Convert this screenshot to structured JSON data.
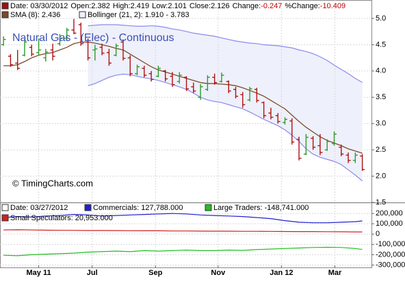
{
  "chart_data": [
    {
      "type": "ohlc",
      "title": "Natural Gas - (Elec) - Continuous",
      "header": [
        "Date: 03/30/2012",
        "Open:2.382",
        "High:2.419",
        "Low:2.101",
        "Close:2.126",
        "Change:",
        "-0.247",
        "%Change:",
        "-10.409"
      ],
      "header_color": "#a01010",
      "credit": "© TimingCharts.com",
      "x": [
        0,
        1,
        2,
        3,
        4,
        5,
        6,
        7,
        8,
        9,
        10,
        11,
        12,
        13,
        14,
        15,
        16,
        17,
        18,
        19,
        20,
        21,
        22,
        23,
        24,
        25,
        26,
        27,
        28,
        29,
        30,
        31,
        32,
        33,
        34,
        35,
        36,
        37,
        38,
        39,
        40,
        41,
        42,
        43,
        44,
        45,
        46,
        47,
        48,
        49,
        50,
        51
      ],
      "open": [
        4.5,
        4.28,
        4.15,
        4.3,
        4.45,
        4.35,
        4.25,
        4.4,
        4.52,
        4.62,
        4.78,
        4.88,
        4.55,
        4.4,
        4.45,
        4.35,
        4.3,
        4.55,
        4.25,
        3.95,
        4.05,
        3.95,
        3.9,
        4.0,
        3.9,
        3.8,
        3.88,
        3.7,
        3.5,
        3.65,
        3.88,
        3.8,
        3.8,
        3.65,
        3.55,
        3.45,
        3.65,
        3.4,
        3.2,
        3.15,
        3.02,
        3.05,
        2.7,
        2.42,
        2.72,
        2.58,
        2.5,
        2.62,
        2.55,
        2.4,
        2.3,
        2.382
      ],
      "high": [
        4.66,
        4.32,
        4.4,
        4.6,
        4.5,
        4.62,
        4.42,
        4.52,
        4.7,
        4.82,
        4.99,
        4.92,
        4.62,
        4.5,
        4.52,
        4.42,
        4.52,
        4.6,
        4.3,
        4.12,
        4.1,
        4.0,
        4.1,
        4.02,
        3.98,
        3.98,
        3.9,
        3.78,
        3.75,
        3.92,
        3.95,
        3.97,
        3.82,
        3.7,
        3.6,
        3.7,
        3.68,
        3.42,
        3.3,
        3.2,
        3.12,
        3.1,
        2.75,
        2.8,
        2.76,
        2.8,
        2.7,
        2.85,
        2.6,
        2.45,
        2.45,
        2.419
      ],
      "low": [
        4.48,
        4.08,
        4.02,
        4.28,
        4.28,
        4.3,
        4.18,
        4.2,
        4.48,
        4.58,
        4.7,
        4.48,
        4.2,
        4.2,
        4.3,
        4.1,
        4.28,
        4.2,
        3.9,
        3.92,
        3.88,
        3.8,
        3.88,
        3.8,
        3.7,
        3.76,
        3.62,
        3.58,
        3.45,
        3.62,
        3.74,
        3.78,
        3.58,
        3.48,
        3.3,
        3.42,
        3.4,
        3.1,
        3.08,
        3.0,
        2.98,
        2.6,
        2.3,
        2.4,
        2.5,
        2.4,
        2.48,
        2.58,
        2.38,
        2.25,
        2.25,
        2.101
      ],
      "close": [
        4.6,
        4.12,
        4.05,
        4.55,
        4.32,
        4.4,
        4.36,
        4.28,
        4.62,
        4.78,
        4.72,
        4.52,
        4.25,
        4.42,
        4.34,
        4.15,
        4.48,
        4.24,
        3.95,
        4.08,
        3.92,
        3.84,
        4.05,
        3.85,
        3.74,
        3.92,
        3.66,
        3.62,
        3.7,
        3.88,
        3.78,
        3.92,
        3.62,
        3.52,
        3.36,
        3.66,
        3.44,
        3.15,
        3.12,
        3.04,
        3.08,
        2.65,
        2.34,
        2.74,
        2.55,
        2.45,
        2.66,
        2.8,
        2.42,
        2.3,
        2.4,
        2.126
      ],
      "up_color": "#2a9a2a",
      "down_color": "#b01010",
      "overlays": [
        {
          "name": "SMA (8): 2.436",
          "color": "#7a4a2a",
          "values": [
            4.1,
            4.1,
            4.12,
            4.18,
            4.25,
            4.3,
            4.33,
            4.35,
            4.4,
            4.45,
            4.52,
            4.55,
            4.55,
            4.53,
            4.5,
            4.47,
            4.43,
            4.4,
            4.32,
            4.24,
            4.16,
            4.08,
            4.02,
            3.98,
            3.94,
            3.9,
            3.86,
            3.82,
            3.78,
            3.76,
            3.76,
            3.75,
            3.74,
            3.72,
            3.68,
            3.63,
            3.58,
            3.52,
            3.44,
            3.36,
            3.28,
            3.16,
            3.04,
            2.93,
            2.84,
            2.75,
            2.68,
            2.63,
            2.58,
            2.52,
            2.48,
            2.436
          ]
        }
      ],
      "band": {
        "name": "Bollinger (21, 2): 1.910 - 3.783",
        "color": "#8a8aee",
        "fill": "#eef0fb",
        "upper": [
          null,
          null,
          null,
          null,
          null,
          null,
          null,
          null,
          null,
          null,
          null,
          null,
          4.86,
          4.87,
          4.88,
          4.88,
          4.88,
          4.87,
          4.86,
          4.85,
          4.85,
          4.86,
          4.85,
          4.83,
          4.8,
          4.78,
          4.75,
          4.72,
          4.7,
          4.68,
          4.66,
          4.63,
          4.6,
          4.57,
          4.55,
          4.53,
          4.52,
          4.5,
          4.49,
          4.48,
          4.46,
          4.44,
          4.4,
          4.37,
          4.33,
          4.27,
          4.2,
          4.11,
          4.03,
          3.95,
          3.86,
          3.783
        ],
        "lower": [
          null,
          null,
          null,
          null,
          null,
          null,
          null,
          null,
          null,
          null,
          null,
          null,
          3.72,
          3.76,
          3.82,
          3.88,
          3.92,
          3.94,
          3.93,
          3.9,
          3.87,
          3.85,
          3.82,
          3.78,
          3.74,
          3.7,
          3.65,
          3.58,
          3.5,
          3.45,
          3.42,
          3.4,
          3.36,
          3.32,
          3.28,
          3.22,
          3.15,
          3.08,
          3.02,
          2.96,
          2.88,
          2.78,
          2.66,
          2.52,
          2.42,
          2.36,
          2.32,
          2.28,
          2.22,
          2.12,
          2.02,
          1.91
        ]
      },
      "xlim": [
        -0.5,
        52.3
      ],
      "ylim": [
        1.5,
        5.35
      ],
      "yticks": [
        1.5,
        {
          "value": 2,
          "label": "2.0"
        },
        2.5,
        {
          "value": 3,
          "label": "3.0"
        },
        3.5,
        {
          "value": 4,
          "label": "4.0"
        },
        4.5,
        {
          "value": 5,
          "label": "5.0"
        }
      ],
      "grid": true
    },
    {
      "type": "line",
      "header": "Date: 03/27/2012",
      "x": [
        0,
        2,
        4,
        6,
        8,
        10,
        12,
        14,
        16,
        18,
        20,
        22,
        24,
        26,
        28,
        30,
        32,
        34,
        36,
        38,
        40,
        42,
        44,
        46,
        48,
        50,
        51
      ],
      "series": [
        {
          "name": "Commercials: 127,788.000",
          "color": "#2020d0",
          "values": [
            160000,
            170000,
            165000,
            175000,
            180000,
            190000,
            185000,
            175000,
            180000,
            185000,
            190000,
            195000,
            200000,
            195000,
            185000,
            180000,
            175000,
            170000,
            160000,
            150000,
            130000,
            115000,
            110000,
            110000,
            115000,
            120000,
            127788
          ]
        },
        {
          "name": "Large Traders: -148,741.000",
          "color": "#20c020",
          "values": [
            -205000,
            -210000,
            -200000,
            -195000,
            -190000,
            -185000,
            -175000,
            -170000,
            -165000,
            -170000,
            -160000,
            -165000,
            -160000,
            -155000,
            -160000,
            -160000,
            -155000,
            -158000,
            -150000,
            -145000,
            -140000,
            -135000,
            -130000,
            -128000,
            -130000,
            -140000,
            -148741
          ]
        },
        {
          "name": "Small Speculators: 20,953.000",
          "color": "#d02020",
          "values": [
            40000,
            42000,
            40000,
            38000,
            37000,
            36000,
            35000,
            35000,
            34000,
            33000,
            32000,
            32000,
            30000,
            30000,
            29000,
            28000,
            28000,
            27000,
            27000,
            26000,
            25000,
            24000,
            24000,
            23000,
            22000,
            21000,
            20953
          ]
        }
      ],
      "xlim": [
        -0.5,
        52.3
      ],
      "xticks": [
        {
          "value": 5,
          "label": "May 11"
        },
        {
          "value": 12.6,
          "label": "Jul"
        },
        {
          "value": 21.6,
          "label": "Sep"
        },
        {
          "value": 30.5,
          "label": "Nov"
        },
        {
          "value": 39.5,
          "label": "Jan 12"
        },
        {
          "value": 47.1,
          "label": "Mar"
        }
      ],
      "ylim": [
        -330000,
        300000
      ],
      "yticks": [
        {
          "value": 200000,
          "label": "200,000"
        },
        {
          "value": 100000,
          "label": "100,000"
        },
        0,
        {
          "value": -100000,
          "label": "-100,000"
        },
        {
          "value": -200000,
          "label": "-200,000"
        },
        {
          "value": -300000,
          "label": "-300,000"
        }
      ],
      "grid": true
    }
  ]
}
